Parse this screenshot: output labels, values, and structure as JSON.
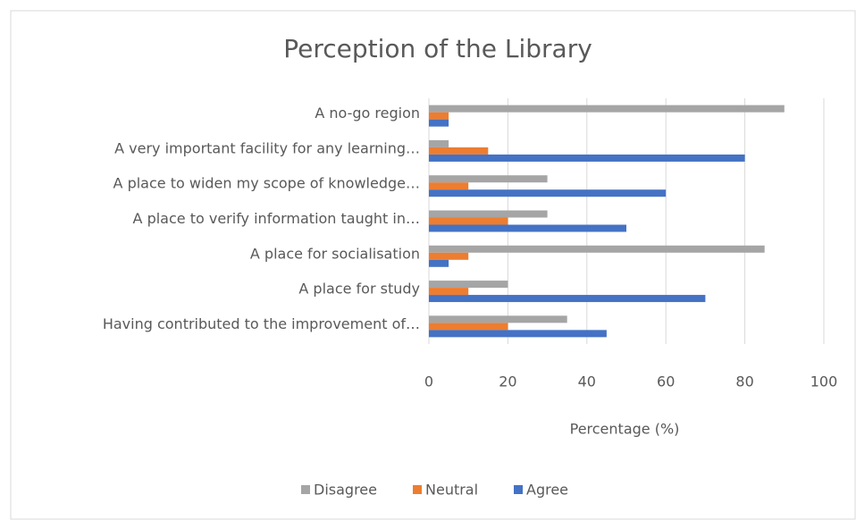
{
  "chart_data": {
    "type": "bar",
    "orientation": "horizontal",
    "title": "Perception of the Library",
    "x_label": "Percentage (%)",
    "categories": [
      "A no-go region",
      "A very important facility for any learning…",
      "A place to widen my scope of knowledge…",
      "A place to verify information taught in…",
      "A place for socialisation",
      "A place for study",
      "Having contributed to the improvement of…"
    ],
    "series": [
      {
        "name": "Disagree",
        "color": "#a5a5a5",
        "values": [
          90,
          5,
          30,
          30,
          85,
          20,
          35
        ]
      },
      {
        "name": "Neutral",
        "color": "#ed7d31",
        "values": [
          5,
          15,
          10,
          20,
          10,
          10,
          20
        ]
      },
      {
        "name": "Agree",
        "color": "#4472c4",
        "values": [
          5,
          80,
          60,
          50,
          5,
          70,
          45
        ]
      }
    ],
    "xlim": [
      0,
      100
    ],
    "xticks": [
      0,
      20,
      40,
      60,
      80,
      100
    ],
    "grid": true,
    "legend": "bottom"
  }
}
